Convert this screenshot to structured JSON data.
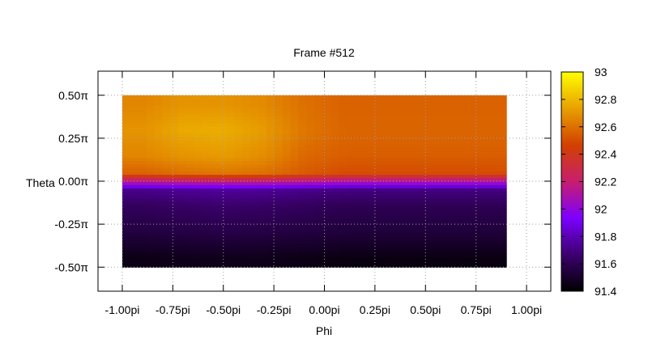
{
  "chart_data": {
    "type": "heatmap",
    "title": "Frame #512",
    "xlabel": "Phi",
    "ylabel": "Theta",
    "xlim": [
      -1.12,
      1.12
    ],
    "ylim": [
      -0.64,
      0.64
    ],
    "x_ticks": [
      {
        "value": -1.0,
        "label": "-1.00pi"
      },
      {
        "value": -0.75,
        "label": "-0.75pi"
      },
      {
        "value": -0.5,
        "label": "-0.50pi"
      },
      {
        "value": -0.25,
        "label": "-0.25pi"
      },
      {
        "value": 0.0,
        "label": "0.00pi"
      },
      {
        "value": 0.25,
        "label": "0.25pi"
      },
      {
        "value": 0.5,
        "label": "0.50pi"
      },
      {
        "value": 0.75,
        "label": "0.75pi"
      },
      {
        "value": 1.0,
        "label": "1.00pi"
      }
    ],
    "y_ticks": [
      {
        "value": 0.5,
        "label": "0.50π"
      },
      {
        "value": 0.25,
        "label": "0.25π"
      },
      {
        "value": 0.0,
        "label": "0.00π"
      },
      {
        "value": -0.25,
        "label": "-0.25π"
      },
      {
        "value": -0.5,
        "label": "-0.50π"
      }
    ],
    "grid": true,
    "colorbar": {
      "range": [
        91.4,
        93.0
      ],
      "ticks": [
        {
          "value": 93.0,
          "label": "93"
        },
        {
          "value": 92.8,
          "label": "92.8"
        },
        {
          "value": 92.6,
          "label": "92.6"
        },
        {
          "value": 92.4,
          "label": "92.4"
        },
        {
          "value": 92.2,
          "label": "92.2"
        },
        {
          "value": 92.0,
          "label": "92"
        },
        {
          "value": 91.8,
          "label": "91.8"
        },
        {
          "value": 91.6,
          "label": "91.6"
        },
        {
          "value": 91.4,
          "label": "91.4"
        }
      ],
      "palette": [
        "#000000",
        "#3c006e",
        "#7c00ff",
        "#c81e6e",
        "#d24000",
        "#e8a000",
        "#ffff00"
      ]
    },
    "x": [
      -0.9,
      -0.7,
      -0.5,
      -0.3,
      -0.1,
      0.1,
      0.3,
      0.5,
      0.7,
      0.9
    ],
    "y": [
      -0.45,
      -0.3,
      -0.15,
      -0.05,
      0.05,
      0.15,
      0.3,
      0.45
    ],
    "values": [
      [
        91.45,
        91.46,
        91.46,
        91.46,
        91.45,
        91.44,
        91.44,
        91.44,
        91.44,
        91.44
      ],
      [
        91.55,
        91.56,
        91.57,
        91.56,
        91.55,
        91.54,
        91.54,
        91.54,
        91.54,
        91.54
      ],
      [
        91.62,
        91.64,
        91.65,
        91.64,
        91.62,
        91.6,
        91.6,
        91.6,
        91.6,
        91.6
      ],
      [
        91.72,
        91.74,
        91.75,
        91.74,
        91.72,
        91.7,
        91.7,
        91.7,
        91.7,
        91.7
      ],
      [
        92.56,
        92.6,
        92.62,
        92.6,
        92.54,
        92.5,
        92.5,
        92.5,
        92.5,
        92.5
      ],
      [
        92.66,
        92.7,
        92.72,
        92.68,
        92.58,
        92.55,
        92.55,
        92.55,
        92.55,
        92.55
      ],
      [
        92.7,
        92.76,
        92.77,
        92.72,
        92.62,
        92.57,
        92.57,
        92.57,
        92.57,
        92.57
      ],
      [
        92.66,
        92.7,
        92.7,
        92.67,
        92.6,
        92.56,
        92.56,
        92.56,
        92.56,
        92.56
      ]
    ],
    "extent": {
      "x": [
        -1.0,
        0.9
      ],
      "y": [
        -0.5,
        0.5
      ]
    }
  }
}
